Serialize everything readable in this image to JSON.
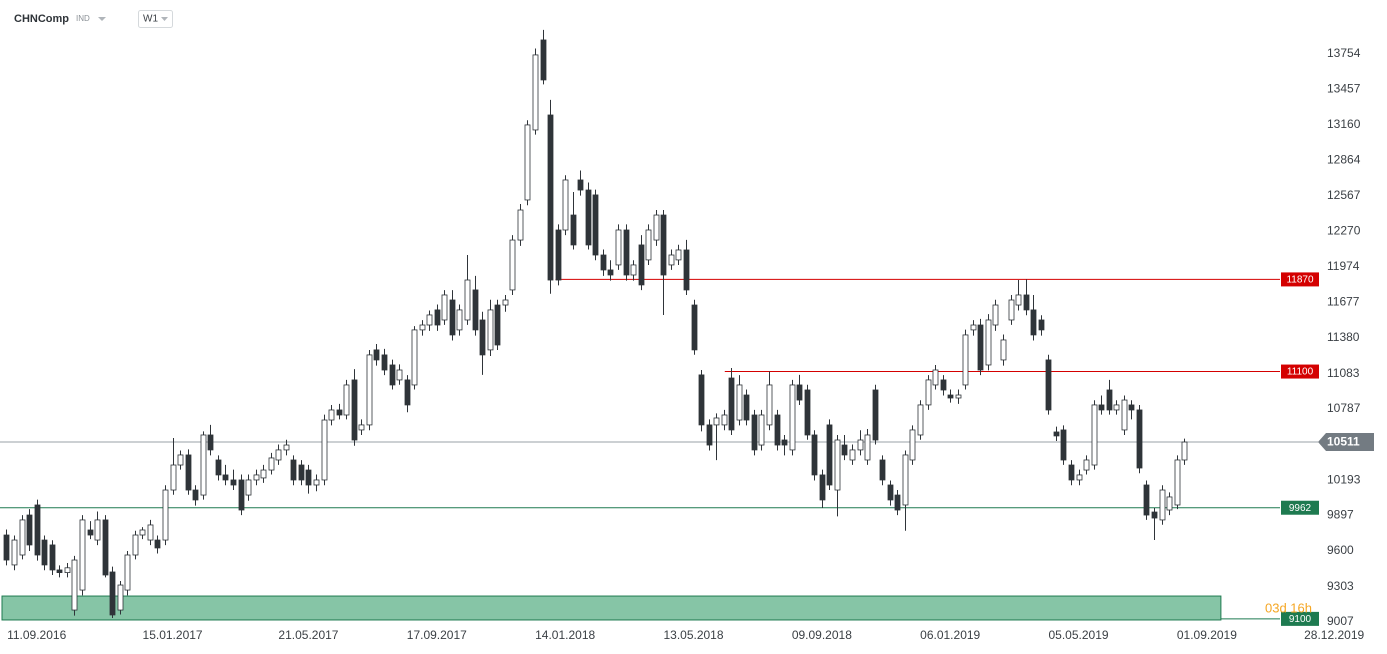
{
  "chart_data": {
    "type": "candlestick",
    "title": "CHNComp",
    "market": "IND",
    "timeframe": "W1",
    "countdown": "03d 16h",
    "x": [
      "14.08.2016",
      "21.08.2016",
      "28.08.2016",
      "04.09.2016",
      "11.09.2016",
      "18.09.2016",
      "25.09.2016",
      "02.10.2016",
      "09.10.2016",
      "16.10.2016",
      "23.10.2016",
      "30.10.2016",
      "06.11.2016",
      "13.11.2016",
      "20.11.2016",
      "27.11.2016",
      "04.12.2016",
      "11.12.2016",
      "18.12.2016",
      "25.12.2016",
      "01.01.2017",
      "08.01.2017",
      "15.01.2017",
      "22.01.2017",
      "29.01.2017",
      "05.02.2017",
      "12.02.2017",
      "19.02.2017",
      "26.02.2017",
      "05.03.2017",
      "12.03.2017",
      "19.03.2017",
      "26.03.2017",
      "02.04.2017",
      "09.04.2017",
      "16.04.2017",
      "23.04.2017",
      "30.04.2017",
      "07.05.2017",
      "14.05.2017",
      "21.05.2017",
      "28.05.2017",
      "04.06.2017",
      "11.06.2017",
      "18.06.2017",
      "25.06.2017",
      "02.07.2017",
      "09.07.2017",
      "16.07.2017",
      "23.07.2017",
      "30.07.2017",
      "06.08.2017",
      "13.08.2017",
      "20.08.2017",
      "27.08.2017",
      "03.09.2017",
      "10.09.2017",
      "17.09.2017",
      "24.09.2017",
      "01.10.2017",
      "08.10.2017",
      "15.10.2017",
      "22.10.2017",
      "29.10.2017",
      "05.11.2017",
      "12.11.2017",
      "19.11.2017",
      "26.11.2017",
      "03.12.2017",
      "10.12.2017",
      "17.12.2017",
      "24.12.2017",
      "31.12.2017",
      "07.01.2018",
      "14.01.2018",
      "21.01.2018",
      "28.01.2018",
      "04.02.2018",
      "11.02.2018",
      "18.02.2018",
      "25.02.2018",
      "04.03.2018",
      "11.03.2018",
      "18.03.2018",
      "25.03.2018",
      "01.04.2018",
      "08.04.2018",
      "15.04.2018",
      "22.04.2018",
      "29.04.2018",
      "06.05.2018",
      "13.05.2018",
      "20.05.2018",
      "27.05.2018",
      "03.06.2018",
      "10.06.2018",
      "17.06.2018",
      "24.06.2018",
      "01.07.2018",
      "08.07.2018",
      "15.07.2018",
      "22.07.2018",
      "29.07.2018",
      "05.08.2018",
      "12.08.2018",
      "19.08.2018",
      "26.08.2018",
      "02.09.2018",
      "09.09.2018",
      "16.09.2018",
      "23.09.2018",
      "30.09.2018",
      "07.10.2018",
      "14.10.2018",
      "21.10.2018",
      "28.10.2018",
      "04.11.2018",
      "11.11.2018",
      "18.11.2018",
      "25.11.2018",
      "02.12.2018",
      "09.12.2018",
      "16.12.2018",
      "23.12.2018",
      "30.12.2018",
      "06.01.2019",
      "13.01.2019",
      "20.01.2019",
      "27.01.2019",
      "03.02.2019",
      "10.02.2019",
      "17.02.2019",
      "24.02.2019",
      "03.03.2019",
      "10.03.2019",
      "17.03.2019",
      "24.03.2019",
      "31.03.2019",
      "07.04.2019",
      "14.04.2019",
      "21.04.2019",
      "28.04.2019",
      "05.05.2019",
      "12.05.2019",
      "19.05.2019",
      "26.05.2019",
      "02.06.2019",
      "09.06.2019",
      "16.06.2019",
      "23.06.2019",
      "30.06.2019",
      "07.07.2019",
      "14.07.2019",
      "21.07.2019",
      "28.07.2019",
      "04.08.2019",
      "11.08.2019"
    ],
    "open": [
      9734,
      9484,
      9567,
      9901,
      9985,
      9692,
      9651,
      9442,
      9420,
      9107,
      9274,
      9776,
      9692,
      9860,
      9425,
      9107,
      9274,
      9567,
      9734,
      9692,
      9692,
      9692,
      10110,
      10319,
      10403,
      10110,
      10068,
      10570,
      10361,
      10236,
      10194,
      10194,
      10068,
      10194,
      10211,
      10277,
      10361,
      10445,
      10361,
      10319,
      10277,
      10152,
      10194,
      10695,
      10779,
      10737,
      11030,
      10612,
      10654,
      11281,
      11239,
      11155,
      11030,
      11030,
      10988,
      11448,
      11489,
      11615,
      11531,
      11698,
      11448,
      11531,
      11782,
      11531,
      11281,
      11656,
      11656,
      11782,
      12199,
      12534,
      13119,
      13871,
      13244,
      12283,
      12283,
      12408,
      12701,
      12617,
      12576,
      12074,
      11949,
      11991,
      12283,
      11907,
      12158,
      12033,
      12199,
      12408,
      11991,
      12033,
      12116,
      11656,
      11072,
      10654,
      10654,
      10654,
      11046,
      10695,
      10904,
      10737,
      10486,
      10654,
      10737,
      10528,
      10445,
      10988,
      10946,
      10570,
      10236,
      10654,
      10110,
      10486,
      10361,
      10445,
      10361,
      10946,
      10361,
      10152,
      10068,
      9985,
      10361,
      10570,
      10821,
      10988,
      11030,
      10904,
      10879,
      10988,
      11448,
      11489,
      11155,
      11489,
      11197,
      11531,
      11656,
      11740,
      11615,
      11531,
      11197,
      10595,
      10612,
      10319,
      10194,
      10277,
      10319,
      10821,
      10946,
      10779,
      10612,
      10821,
      10779,
      10152,
      9926,
      9860,
      9943,
      9985,
      10361
    ],
    "high": [
      9780,
      9730,
      9900,
      9950,
      10030,
      9730,
      9690,
      9480,
      9500,
      9560,
      9900,
      9850,
      9930,
      9900,
      9470,
      9350,
      9600,
      9770,
      9800,
      9860,
      9730,
      10150,
      10545,
      10440,
      10450,
      10150,
      10600,
      10654,
      10400,
      10320,
      10280,
      10240,
      10240,
      10280,
      10320,
      10420,
      10490,
      10530,
      10400,
      10360,
      10320,
      10240,
      10740,
      10820,
      10830,
      11030,
      11120,
      10700,
      11280,
      11330,
      11290,
      11200,
      11160,
      11070,
      11480,
      11530,
      11610,
      11660,
      11780,
      11780,
      11660,
      12074,
      11900,
      11600,
      11700,
      11700,
      11740,
      12240,
      12500,
      13200,
      13800,
      13955,
      13370,
      12330,
      12740,
      12600,
      12780,
      12680,
      12620,
      12120,
      12030,
      12330,
      12330,
      12030,
      12240,
      12330,
      12450,
      12450,
      12120,
      12160,
      12200,
      11700,
      11113,
      10700,
      10750,
      10780,
      11130,
      11070,
      10950,
      10780,
      10780,
      11100,
      10780,
      10570,
      11030,
      11072,
      10990,
      10610,
      10280,
      10700,
      10570,
      10570,
      10490,
      10610,
      10620,
      10990,
      10400,
      10190,
      10110,
      10440,
      10650,
      10860,
      11070,
      11155,
      11070,
      10950,
      10950,
      11450,
      11530,
      11540,
      11580,
      11700,
      11410,
      11740,
      11865,
      11870,
      11740,
      11570,
      11240,
      10640,
      10650,
      10360,
      10280,
      10400,
      10860,
      10900,
      11030,
      10860,
      10900,
      10860,
      10820,
      10190,
      9960,
      10150,
      10090,
      10400,
      10540
    ],
    "low": [
      9480,
      9440,
      9530,
      9600,
      9520,
      9440,
      9400,
      9380,
      9380,
      9060,
      9230,
      9700,
      9650,
      9380,
      9040,
      9070,
      9230,
      9530,
      9700,
      9650,
      9580,
      9650,
      10070,
      10280,
      10070,
      9980,
      10030,
      10400,
      10190,
      10150,
      10110,
      9900,
      10020,
      10150,
      10170,
      10240,
      10320,
      10400,
      10150,
      10150,
      10080,
      10100,
      10150,
      10650,
      10700,
      10700,
      10480,
      10570,
      10610,
      11150,
      11070,
      10950,
      10990,
      10760,
      10950,
      11400,
      11440,
      11440,
      11490,
      11360,
      11400,
      11490,
      11400,
      11072,
      11230,
      11280,
      11600,
      11740,
      12150,
      12490,
      13080,
      13500,
      11750,
      11820,
      12240,
      12120,
      12570,
      12120,
      12030,
      11900,
      11860,
      11950,
      11860,
      11860,
      11780,
      11990,
      12150,
      11573,
      11950,
      11990,
      11740,
      11240,
      10600,
      10440,
      10360,
      10610,
      10570,
      10650,
      10650,
      10400,
      10440,
      10610,
      10440,
      10400,
      10400,
      10820,
      10530,
      10190,
      9960,
      10110,
      9890,
      10360,
      10320,
      10400,
      10320,
      10490,
      10150,
      9980,
      9900,
      9770,
      10320,
      10530,
      10780,
      10950,
      10900,
      10840,
      10830,
      10950,
      11400,
      11070,
      11110,
      11440,
      11150,
      11490,
      11610,
      11570,
      11360,
      11400,
      10740,
      10520,
      10320,
      10150,
      10150,
      10240,
      10280,
      10740,
      10740,
      10740,
      10570,
      10700,
      10250,
      9860,
      9692,
      9820,
      9900,
      9950,
      10320
    ],
    "close": [
      9525,
      9692,
      9860,
      9651,
      9567,
      9484,
      9442,
      9420,
      9460,
      9525,
      9860,
      9734,
      9860,
      9400,
      9066,
      9316,
      9567,
      9734,
      9776,
      9818,
      9626,
      10110,
      10319,
      10403,
      10110,
      10027,
      10570,
      10445,
      10236,
      10194,
      10152,
      9943,
      10194,
      10236,
      10277,
      10378,
      10445,
      10486,
      10194,
      10194,
      10152,
      10194,
      10695,
      10779,
      10737,
      10988,
      10528,
      10654,
      11239,
      11197,
      11113,
      10988,
      11113,
      10821,
      11448,
      11489,
      11573,
      11489,
      11740,
      11406,
      11615,
      11865,
      11448,
      11239,
      11615,
      11322,
      11698,
      12199,
      12450,
      13161,
      13746,
      13537,
      11865,
      11865,
      12701,
      12158,
      12617,
      12158,
      12074,
      11949,
      11907,
      12283,
      11907,
      11991,
      11824,
      12283,
      12408,
      11907,
      12074,
      12116,
      11782,
      11281,
      10654,
      10486,
      10712,
      10737,
      10612,
      10988,
      10695,
      10445,
      10737,
      10988,
      10486,
      10486,
      10988,
      10862,
      10570,
      10236,
      10027,
      10152,
      10528,
      10403,
      10445,
      10528,
      10570,
      10528,
      10194,
      10027,
      9943,
      10403,
      10612,
      10821,
      11030,
      11113,
      10946,
      10879,
      10904,
      11406,
      11489,
      11113,
      11531,
      11656,
      11364,
      11698,
      11740,
      11615,
      11406,
      11448,
      10779,
      10562,
      10361,
      10194,
      10236,
      10361,
      10821,
      10779,
      10779,
      10821,
      10862,
      10779,
      10294,
      9901,
      9876,
      10110,
      10052,
      10361,
      10511
    ],
    "up_color": "#ffffff",
    "down_color": "#2f3439",
    "outline": "#2f3439",
    "xlim": [
      "08.08.2016",
      "15.02.2020"
    ],
    "xticks": [
      "11.09.2016",
      "15.01.2017",
      "21.05.2017",
      "17.09.2017",
      "14.01.2018",
      "13.05.2018",
      "09.09.2018",
      "06.01.2019",
      "05.05.2019",
      "01.09.2019",
      "28.12.2019"
    ],
    "ylim": [
      8982,
      14205
    ],
    "yticks": [
      13754,
      13457,
      13160,
      12864,
      12567,
      12270,
      11974,
      11677,
      11380,
      11083,
      10787,
      10193,
      9897,
      9600,
      9303,
      9007
    ],
    "levels": [
      {
        "value": 11870,
        "color": "#d40000",
        "start": "05.01.2018"
      },
      {
        "value": 11100,
        "color": "#d40000",
        "start": "11.06.2018"
      },
      {
        "value": 9962,
        "color": "#1e7a50",
        "start": "08.08.2016"
      }
    ],
    "current_price": {
      "value": 10511,
      "color": "#737b82"
    },
    "zone": {
      "value": 9100,
      "range": [
        9024,
        9224
      ],
      "color": "#1e7a50",
      "fill": "#86c5a6",
      "end": "14.09.2019"
    }
  }
}
